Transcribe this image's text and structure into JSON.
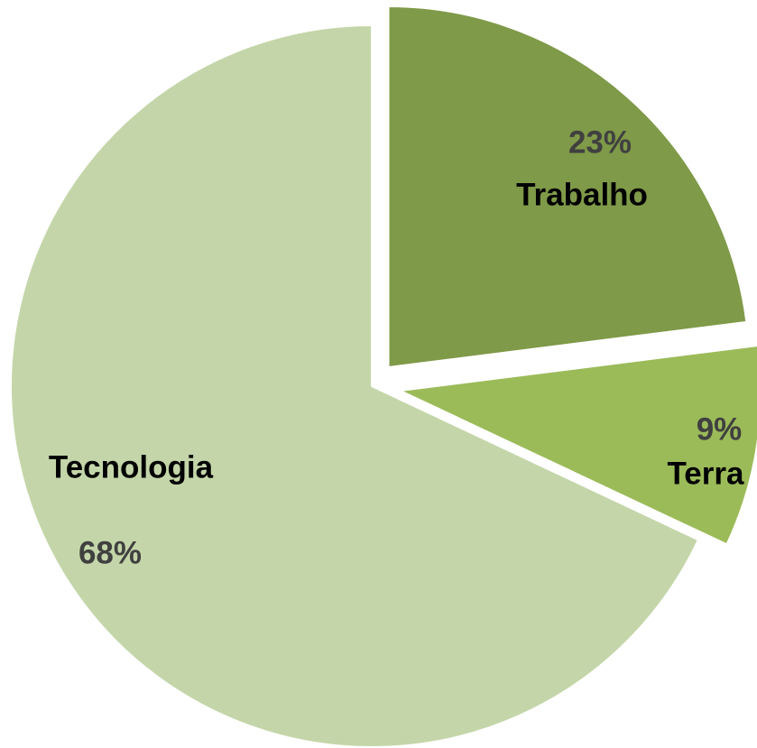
{
  "chart_data": {
    "type": "pie",
    "categories": [
      "Trabalho",
      "Terra",
      "Tecnologia"
    ],
    "values": [
      23,
      9,
      68
    ],
    "value_labels": [
      "23%",
      "9%",
      "68%"
    ],
    "colors": [
      "#7f9a48",
      "#9bbb59",
      "#c4d6a9"
    ]
  }
}
